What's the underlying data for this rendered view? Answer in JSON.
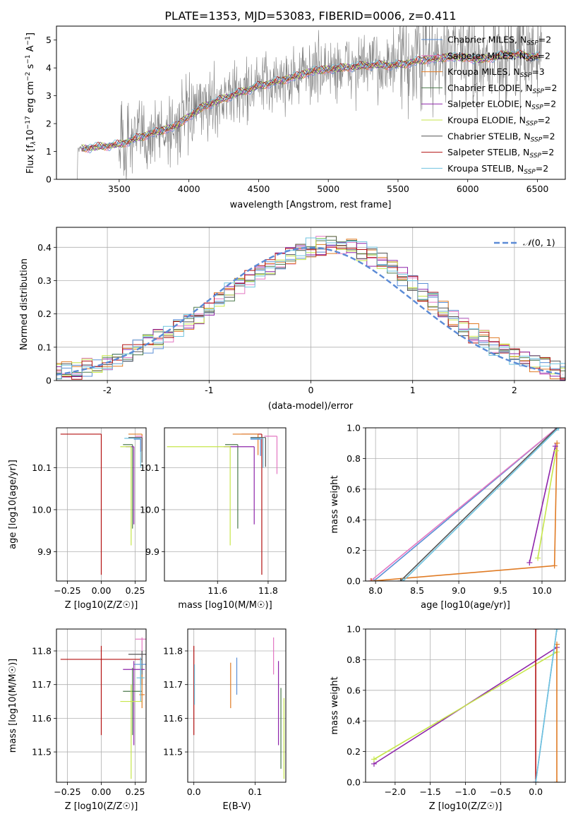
{
  "figure_title": "PLATE=1353, MJD=53083, FIBERID=0006, z=0.411",
  "colors": {
    "Chabrier MILES": "#5b8fd6",
    "Salpeter MILES": "#e377c2",
    "Kroupa MILES": "#e07b24",
    "Chabrier ELODIE": "#4c7a4c",
    "Salpeter ELODIE": "#8e24aa",
    "Kroupa ELODIE": "#c6e64a",
    "Chabrier STELIB": "#555555",
    "Salpeter STELIB": "#b31212",
    "Kroupa STELIB": "#6fc3df",
    "data": "#7f7f7f",
    "normal": "#5b8bd6"
  },
  "chart_data": [
    {
      "id": "spectrum",
      "type": "line",
      "xlabel": "wavelength [Angstrom, rest frame]",
      "ylabel": "Flux [f_λ10^-17 erg cm^-2 s^-1 A^-1]",
      "ylabel_parts": [
        "Flux [f",
        "λ",
        "10",
        "−17",
        " erg cm",
        "−2",
        " s",
        "−1",
        " A",
        "−1",
        "]"
      ],
      "xlim": [
        3050,
        6700
      ],
      "ylim": [
        0,
        5.5
      ],
      "xticks": [
        3500,
        4000,
        4500,
        5000,
        5500,
        6000,
        6500
      ],
      "yticks": [
        0,
        1,
        2,
        3,
        4,
        5
      ],
      "legend_position": "top-right",
      "legend": [
        {
          "name": "Chabrier MILES",
          "nssp": "2"
        },
        {
          "name": "Salpeter MILES",
          "nssp": "2"
        },
        {
          "name": "Kroupa MILES",
          "nssp": "3"
        },
        {
          "name": "Chabrier ELODIE",
          "nssp": "2"
        },
        {
          "name": "Salpeter ELODIE",
          "nssp": "2"
        },
        {
          "name": "Kroupa ELODIE",
          "nssp": "2"
        },
        {
          "name": "Chabrier STELIB",
          "nssp": "2"
        },
        {
          "name": "Salpeter STELIB",
          "nssp": "2"
        },
        {
          "name": "Kroupa STELIB",
          "nssp": "2"
        }
      ],
      "nssp_prefix": "N",
      "nssp_sub": "SSP",
      "model_anchor_wavelengths": [
        3230,
        3500,
        3700,
        3900,
        4100,
        4300,
        4500,
        4700,
        4900,
        5100,
        5300,
        5500,
        5700,
        5900,
        6100,
        6300,
        6500
      ],
      "model_anchor_flux": [
        1.1,
        1.25,
        1.6,
        1.9,
        2.6,
        3.0,
        3.35,
        3.6,
        3.9,
        4.0,
        4.1,
        4.1,
        4.3,
        4.4,
        4.3,
        4.5,
        4.4
      ],
      "data_start": 3200
    },
    {
      "id": "residuals",
      "type": "area",
      "xlabel": "(data-model)/error",
      "ylabel": "Normed distribution",
      "xlim": [
        -2.5,
        2.5
      ],
      "ylim": [
        0,
        0.46
      ],
      "xticks": [
        -2,
        -1,
        0,
        1,
        2
      ],
      "yticks": [
        0.0,
        0.1,
        0.2,
        0.3,
        0.4
      ],
      "legend_position": "top-right",
      "normal_label": "N(0, 1)",
      "normal_label_parts": [
        "𝒩",
        "(0, 1)"
      ],
      "bin_width": 0.1
    },
    {
      "id": "age_vs_Z",
      "type": "scatter",
      "xlabel": "Z [log10(Z/Z☉)]",
      "ylabel": "age  [log10(age/yr)]",
      "xlim": [
        -0.33,
        0.33
      ],
      "ylim": [
        9.83,
        10.195
      ],
      "xticks": [
        -0.25,
        0.0,
        0.25
      ],
      "yticks": [
        9.9,
        10.0,
        10.1
      ],
      "xtick_labels": [
        "−0.25",
        "0.00",
        "0.25"
      ],
      "ytick_labels": [
        "9.9",
        "10.0",
        "10.1"
      ],
      "points": [
        {
          "model": "Salpeter STELIB",
          "x": 0.0,
          "y": 10.18,
          "xerr": 0.3,
          "yerr_lo": 0.335
        },
        {
          "model": "Kroupa MILES",
          "x": 0.3,
          "y": 10.18,
          "xerr": 0.1,
          "yerr_lo": 0.04
        },
        {
          "model": "Salpeter MILES",
          "x": 0.3,
          "y": 10.175,
          "xerr": 0.05,
          "yerr_lo": 0.03
        },
        {
          "model": "Kroupa STELIB",
          "x": 0.29,
          "y": 10.17,
          "xerr": 0.12,
          "yerr_lo": 0.07
        },
        {
          "model": "Chabrier ELODIE",
          "x": 0.23,
          "y": 10.155,
          "xerr": 0.07,
          "yerr_lo": 0.2
        },
        {
          "model": "Salpeter ELODIE",
          "x": 0.24,
          "y": 10.15,
          "xerr": 0.06,
          "yerr_lo": 0.185
        },
        {
          "model": "Kroupa ELODIE",
          "x": 0.22,
          "y": 10.15,
          "xerr": 0.08,
          "yerr_lo": 0.235
        },
        {
          "model": "Chabrier STELIB",
          "x": 0.3,
          "y": 10.172,
          "xerr": 0.1,
          "yerr_lo": 0.06
        },
        {
          "model": "Chabrier MILES",
          "x": 0.29,
          "y": 10.168,
          "xerr": 0.05,
          "yerr_lo": 0.03
        }
      ]
    },
    {
      "id": "age_vs_mass",
      "type": "scatter",
      "xlabel": "mass [log10(M/M☉)]",
      "ylabel": "",
      "xlim": [
        11.39,
        11.87
      ],
      "ylim": [
        9.83,
        10.195
      ],
      "xticks": [
        11.6,
        11.8
      ],
      "yticks": [
        9.9,
        10.0,
        10.1
      ],
      "xtick_labels": [
        "11.6",
        "11.8"
      ],
      "ytick_labels": [
        "9.9",
        "10.0",
        "10.1"
      ],
      "points": [
        {
          "model": "Salpeter STELIB",
          "x": 11.775,
          "y": 10.18,
          "xerr": 0.08,
          "yerr_lo": 0.335
        },
        {
          "model": "Kroupa MILES",
          "x": 11.76,
          "y": 10.18,
          "xerr": 0.1,
          "yerr_lo": 0.05
        },
        {
          "model": "Salpeter MILES",
          "x": 11.835,
          "y": 10.175,
          "xerr": 0.05,
          "yerr_lo": 0.09
        },
        {
          "model": "Kroupa STELIB",
          "x": 11.78,
          "y": 10.17,
          "xerr": 0.05,
          "yerr_lo": 0.07
        },
        {
          "model": "Chabrier ELODIE",
          "x": 11.68,
          "y": 10.155,
          "xerr": 0.05,
          "yerr_lo": 0.2
        },
        {
          "model": "Salpeter ELODIE",
          "x": 11.745,
          "y": 10.15,
          "xerr": 0.12,
          "yerr_lo": 0.185
        },
        {
          "model": "Kroupa ELODIE",
          "x": 11.65,
          "y": 10.15,
          "xerr": 0.25,
          "yerr_lo": 0.235
        },
        {
          "model": "Chabrier STELIB",
          "x": 11.79,
          "y": 10.172,
          "xerr": 0.06,
          "yerr_lo": 0.07
        },
        {
          "model": "Chabrier MILES",
          "x": 11.77,
          "y": 10.168,
          "xerr": 0.04,
          "yerr_lo": 0.04
        }
      ]
    },
    {
      "id": "weight_vs_age",
      "type": "line",
      "xlabel": "age  [log10(age/yr)]",
      "ylabel": "mass weight",
      "xlim": [
        7.88,
        10.28
      ],
      "ylim": [
        0,
        1
      ],
      "xticks": [
        8.0,
        8.5,
        9.0,
        9.5,
        10.0
      ],
      "yticks": [
        0.0,
        0.2,
        0.4,
        0.6,
        0.8,
        1.0
      ],
      "xtick_labels": [
        "8.0",
        "8.5",
        "9.0",
        "9.5",
        "10.0"
      ],
      "ytick_labels": [
        "0.0",
        "0.2",
        "0.4",
        "0.6",
        "0.8",
        "1.0"
      ],
      "series": [
        {
          "model": "Chabrier MILES",
          "x": [
            7.98,
            10.18
          ],
          "y": [
            0.0,
            1.0
          ]
        },
        {
          "model": "Salpeter MILES",
          "x": [
            7.94,
            10.18
          ],
          "y": [
            0.0,
            1.0
          ]
        },
        {
          "model": "Kroupa MILES",
          "x": [
            7.95,
            10.15,
            10.18
          ],
          "y": [
            0.0,
            0.1,
            0.9
          ]
        },
        {
          "model": "Chabrier STELIB",
          "x": [
            8.3,
            10.18
          ],
          "y": [
            0.0,
            1.0
          ]
        },
        {
          "model": "Kroupa STELIB",
          "x": [
            8.33,
            10.2
          ],
          "y": [
            0.0,
            1.0
          ]
        },
        {
          "model": "Salpeter ELODIE",
          "x": [
            9.85,
            10.16
          ],
          "y": [
            0.12,
            0.88
          ]
        },
        {
          "model": "Kroupa ELODIE",
          "x": [
            9.95,
            10.17
          ],
          "y": [
            0.15,
            0.85
          ]
        }
      ]
    },
    {
      "id": "mass_vs_Z",
      "type": "scatter",
      "xlabel": "Z [log10(Z/Z☉)]",
      "ylabel": "mass [log10(M/M☉)]",
      "xlim": [
        -0.33,
        0.33
      ],
      "ylim": [
        11.41,
        11.865
      ],
      "xticks": [
        -0.25,
        0.0,
        0.25
      ],
      "yticks": [
        11.5,
        11.6,
        11.7,
        11.8
      ],
      "xtick_labels": [
        "−0.25",
        "0.00",
        "0.25"
      ],
      "ytick_labels": [
        "11.5",
        "11.6",
        "11.7",
        "11.8"
      ],
      "points": [
        {
          "model": "Salpeter STELIB",
          "x": 0.0,
          "y": 11.775,
          "xerr": 0.3,
          "ylo": 11.55,
          "yhi": 11.815
        },
        {
          "model": "Salpeter MILES",
          "x": 0.3,
          "y": 11.835,
          "xerr": 0.05,
          "ylo": 11.78,
          "yhi": 11.84
        },
        {
          "model": "Chabrier STELIB",
          "x": 0.3,
          "y": 11.79,
          "xerr": 0.1,
          "ylo": 11.7,
          "yhi": 11.8
        },
        {
          "model": "Chabrier MILES",
          "x": 0.29,
          "y": 11.76,
          "xerr": 0.05,
          "ylo": 11.7,
          "yhi": 11.78
        },
        {
          "model": "Salpeter ELODIE",
          "x": 0.24,
          "y": 11.745,
          "xerr": 0.08,
          "ylo": 11.52,
          "yhi": 11.77
        },
        {
          "model": "Chabrier ELODIE",
          "x": 0.23,
          "y": 11.68,
          "xerr": 0.07,
          "ylo": 11.55,
          "yhi": 11.75
        },
        {
          "model": "Kroupa ELODIE",
          "x": 0.22,
          "y": 11.65,
          "xerr": 0.08,
          "ylo": 11.42,
          "yhi": 11.7
        },
        {
          "model": "Kroupa MILES",
          "x": 0.3,
          "y": 11.67,
          "xerr": 0.02,
          "ylo": 11.63,
          "yhi": 11.73
        },
        {
          "model": "Kroupa STELIB",
          "x": 0.29,
          "y": 11.72,
          "xerr": 0.03,
          "ylo": 11.65,
          "yhi": 11.78
        }
      ]
    },
    {
      "id": "mass_vs_EBV",
      "type": "scatter",
      "xlabel": "E(B-V)",
      "ylabel": "",
      "xlim": [
        -0.01,
        0.15
      ],
      "ylim": [
        11.41,
        11.865
      ],
      "xticks": [
        0.0,
        0.1
      ],
      "yticks": [
        11.5,
        11.6,
        11.7,
        11.8
      ],
      "xtick_labels": [
        "0.0",
        "0.1"
      ],
      "ytick_labels": [
        "11.5",
        "11.6",
        "11.7",
        "11.8"
      ],
      "points": [
        {
          "model": "Salpeter STELIB",
          "x": 0.0,
          "ylo": 11.55,
          "yhi": 11.815
        },
        {
          "model": "Kroupa STELIB",
          "x": 0.001,
          "ylo": 11.64,
          "yhi": 11.76
        },
        {
          "model": "Kroupa MILES",
          "x": 0.06,
          "ylo": 11.63,
          "yhi": 11.765
        },
        {
          "model": "Chabrier MILES",
          "x": 0.07,
          "ylo": 11.67,
          "yhi": 11.78
        },
        {
          "model": "Salpeter MILES",
          "x": 0.13,
          "ylo": 11.73,
          "yhi": 11.84
        },
        {
          "model": "Salpeter ELODIE",
          "x": 0.138,
          "ylo": 11.52,
          "yhi": 11.77
        },
        {
          "model": "Chabrier ELODIE",
          "x": 0.142,
          "ylo": 11.45,
          "yhi": 11.69
        },
        {
          "model": "Kroupa ELODIE",
          "x": 0.147,
          "ylo": 11.42,
          "yhi": 11.66
        }
      ]
    },
    {
      "id": "weight_vs_Z",
      "type": "line",
      "xlabel": "Z [log10(Z/Z☉)]",
      "ylabel": "mass weight",
      "xlim": [
        -2.42,
        0.42
      ],
      "ylim": [
        0,
        1
      ],
      "xticks": [
        -2.0,
        -1.5,
        -1.0,
        -0.5,
        0.0
      ],
      "yticks": [
        0.0,
        0.2,
        0.4,
        0.6,
        0.8,
        1.0
      ],
      "xtick_labels": [
        "−2.0",
        "−1.5",
        "−1.0",
        "−0.5",
        "0.0"
      ],
      "ytick_labels": [
        "0.0",
        "0.2",
        "0.4",
        "0.6",
        "0.8",
        "1.0"
      ],
      "series": [
        {
          "model": "Salpeter ELODIE",
          "x": [
            -2.3,
            0.3
          ],
          "y": [
            0.12,
            0.88
          ]
        },
        {
          "model": "Kroupa ELODIE",
          "x": [
            -2.3,
            0.3
          ],
          "y": [
            0.15,
            0.85
          ]
        },
        {
          "model": "Salpeter STELIB",
          "x": [
            0.0,
            0.0
          ],
          "y": [
            0.0,
            1.0
          ]
        },
        {
          "model": "Kroupa MILES",
          "x": [
            0.3,
            0.3
          ],
          "y": [
            0.0,
            0.9
          ]
        },
        {
          "model": "Chabrier MILES",
          "x": [
            0.0,
            0.3
          ],
          "y": [
            0.0,
            1.0
          ]
        },
        {
          "model": "Kroupa STELIB",
          "x": [
            0.0,
            0.3
          ],
          "y": [
            0.0,
            1.0
          ]
        }
      ]
    }
  ]
}
